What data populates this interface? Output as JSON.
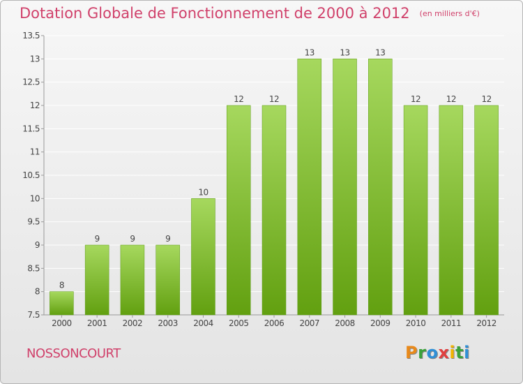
{
  "header": {
    "title": "Dotation Globale de Fonctionnement de 2000 à 2012",
    "unit": "(en milliers d'€)"
  },
  "commune": "NOSSONCOURT",
  "logo": {
    "letters": [
      "P",
      "r",
      "o",
      "x",
      "i",
      "t",
      "i"
    ],
    "colors": [
      "#e8891a",
      "#3aa13a",
      "#2f8fd6",
      "#e04040",
      "#f2b400",
      "#3aa13a",
      "#2f8fd6"
    ]
  },
  "colors": {
    "bar_top": "#a6d85e",
    "bar_bottom": "#62a010",
    "title": "#d0406a",
    "grid": "#ffffff"
  },
  "chart_data": {
    "type": "bar",
    "categories": [
      "2000",
      "2001",
      "2002",
      "2003",
      "2004",
      "2005",
      "2006",
      "2007",
      "2008",
      "2009",
      "2010",
      "2011",
      "2012"
    ],
    "values": [
      8,
      9,
      9,
      9,
      10,
      12,
      12,
      13,
      13,
      13,
      12,
      12,
      12
    ],
    "data_labels": [
      "8",
      "9",
      "9",
      "9",
      "10",
      "12",
      "12",
      "13",
      "13",
      "13",
      "12",
      "12",
      "12"
    ],
    "ylim": [
      7.5,
      13.5
    ],
    "yticks": [
      7.5,
      8,
      8.5,
      9,
      9.5,
      10,
      10.5,
      11,
      11.5,
      12,
      12.5,
      13,
      13.5
    ],
    "ytick_labels": [
      "7.5",
      "8",
      "8.5",
      "9",
      "9.5",
      "10",
      "10.5",
      "11",
      "11.5",
      "12",
      "12.5",
      "13",
      "13.5"
    ],
    "grid": true
  }
}
